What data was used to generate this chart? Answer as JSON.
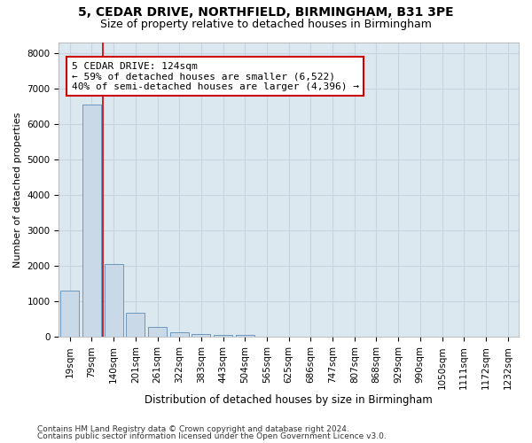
{
  "title1": "5, CEDAR DRIVE, NORTHFIELD, BIRMINGHAM, B31 3PE",
  "title2": "Size of property relative to detached houses in Birmingham",
  "xlabel": "Distribution of detached houses by size in Birmingham",
  "ylabel": "Number of detached properties",
  "bar_labels": [
    "19sqm",
    "79sqm",
    "140sqm",
    "201sqm",
    "261sqm",
    "322sqm",
    "383sqm",
    "443sqm",
    "504sqm",
    "565sqm",
    "625sqm",
    "686sqm",
    "747sqm",
    "807sqm",
    "868sqm",
    "929sqm",
    "990sqm",
    "1050sqm",
    "1111sqm",
    "1172sqm",
    "1232sqm"
  ],
  "bar_values": [
    1300,
    6550,
    2060,
    680,
    280,
    140,
    90,
    55,
    55,
    0,
    0,
    0,
    0,
    0,
    0,
    0,
    0,
    0,
    0,
    0,
    0
  ],
  "bar_color": "#c9d9e8",
  "bar_edge_color": "#5b8db8",
  "vline_x": 1.5,
  "vline_color": "#cc0000",
  "annotation_line1": "5 CEDAR DRIVE: 124sqm",
  "annotation_line2": "← 59% of detached houses are smaller (6,522)",
  "annotation_line3": "40% of semi-detached houses are larger (4,396) →",
  "box_color": "#cc0000",
  "ylim": [
    0,
    8300
  ],
  "yticks": [
    0,
    1000,
    2000,
    3000,
    4000,
    5000,
    6000,
    7000,
    8000
  ],
  "grid_color": "#c8d4e0",
  "background_color": "#dce8f0",
  "footer1": "Contains HM Land Registry data © Crown copyright and database right 2024.",
  "footer2": "Contains public sector information licensed under the Open Government Licence v3.0.",
  "title1_fontsize": 10,
  "title2_fontsize": 9,
  "xlabel_fontsize": 8.5,
  "ylabel_fontsize": 8,
  "tick_fontsize": 7.5,
  "annotation_fontsize": 8,
  "footer_fontsize": 6.5
}
